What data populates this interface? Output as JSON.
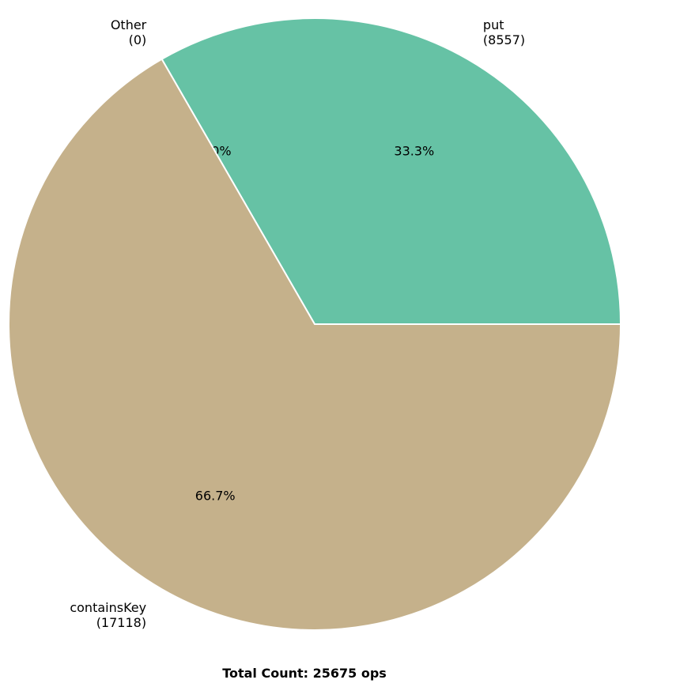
{
  "chart_data": {
    "type": "pie",
    "slices": [
      {
        "label": "put",
        "count_label": "(8557)",
        "value": 8557,
        "pct_label": "33.3%",
        "color": "#66c2a5"
      },
      {
        "label": "Other",
        "count_label": "(0)",
        "value": 0,
        "pct_label": "0.0%",
        "color": "#8da0cb"
      },
      {
        "label": "containsKey",
        "count_label": "(17118)",
        "value": 17118,
        "pct_label": "66.7%",
        "color": "#c5b18b"
      }
    ],
    "start_angle_deg": 0,
    "direction": "counterclockwise",
    "footer": "Total Count: 25675 ops"
  }
}
